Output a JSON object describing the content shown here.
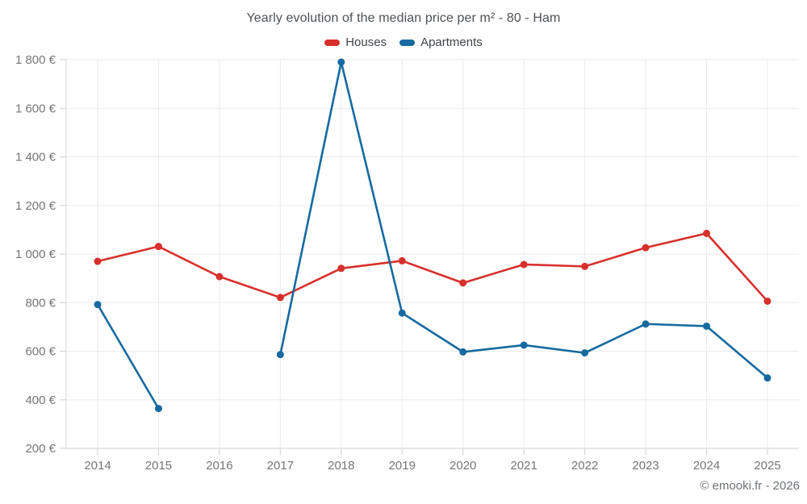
{
  "footer": {
    "credit": "© emooki.fr - 2026"
  },
  "chart_data": {
    "type": "line",
    "title": "Yearly evolution of the median price per m² - 80 - Ham",
    "categories": [
      "2014",
      "2015",
      "2016",
      "2017",
      "2018",
      "2019",
      "2020",
      "2021",
      "2022",
      "2023",
      "2024",
      "2025"
    ],
    "series": [
      {
        "name": "Houses",
        "color": "#d7302c",
        "values": [
          970,
          1031,
          907,
          821,
          941,
          972,
          881,
          957,
          949,
          1026,
          1085,
          806
        ]
      },
      {
        "name": "Apartments",
        "color": "#166aa0",
        "values": [
          792,
          364,
          null,
          586,
          1790,
          757,
          597,
          625,
          593,
          712,
          703,
          490
        ]
      }
    ],
    "xlabel": "",
    "ylabel": "",
    "ylim": [
      200,
      1800
    ],
    "yticks": [
      200,
      400,
      600,
      800,
      1000,
      1200,
      1400,
      1600,
      1800
    ],
    "ytick_labels": [
      "200 €",
      "400 €",
      "600 €",
      "800 €",
      "1 000 €",
      "1 200 €",
      "1 400 €",
      "1 600 €",
      "1 800 €"
    ],
    "currency_suffix": "€",
    "grid": true,
    "legend_position": "top",
    "missing_points": {
      "Apartments": [
        "2016"
      ]
    }
  }
}
